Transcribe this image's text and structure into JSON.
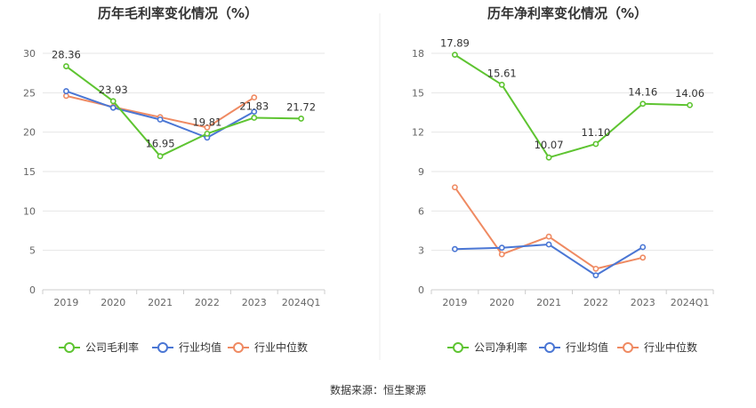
{
  "source_label": "数据来源：恒生聚源",
  "chart_data": [
    {
      "type": "line",
      "title": "历年毛利率变化情况（%）",
      "categories": [
        "2019",
        "2020",
        "2021",
        "2022",
        "2023",
        "2024Q1"
      ],
      "ylim": [
        0,
        30
      ],
      "yticks": [
        0,
        5,
        10,
        15,
        20,
        25,
        30
      ],
      "grid": true,
      "legend_position": "bottom",
      "series": [
        {
          "name": "公司毛利率",
          "color": "#5ec431",
          "values": [
            28.36,
            23.93,
            16.95,
            19.81,
            21.83,
            21.72
          ],
          "labels": [
            "28.36",
            "23.93",
            "16.95",
            "19.81",
            "21.83",
            "21.72"
          ]
        },
        {
          "name": "行业均值",
          "color": "#4a76d4",
          "values": [
            25.2,
            23.1,
            21.6,
            19.3,
            22.6,
            null
          ]
        },
        {
          "name": "行业中位数",
          "color": "#ef8a62",
          "values": [
            24.6,
            23.2,
            21.9,
            20.6,
            24.4,
            null
          ]
        }
      ]
    },
    {
      "type": "line",
      "title": "历年净利率变化情况（%）",
      "categories": [
        "2019",
        "2020",
        "2021",
        "2022",
        "2023",
        "2024Q1"
      ],
      "ylim": [
        0,
        18
      ],
      "yticks": [
        0,
        3,
        6,
        9,
        12,
        15,
        18
      ],
      "grid": true,
      "legend_position": "bottom",
      "series": [
        {
          "name": "公司净利率",
          "color": "#5ec431",
          "values": [
            17.89,
            15.61,
            10.07,
            11.1,
            14.16,
            14.06
          ],
          "labels": [
            "17.89",
            "15.61",
            "10.07",
            "11.10",
            "14.16",
            "14.06"
          ]
        },
        {
          "name": "行业均值",
          "color": "#4a76d4",
          "values": [
            3.1,
            3.2,
            3.45,
            1.1,
            3.25,
            null
          ]
        },
        {
          "name": "行业中位数",
          "color": "#ef8a62",
          "values": [
            7.8,
            2.7,
            4.05,
            1.6,
            2.45,
            null
          ]
        }
      ]
    }
  ]
}
